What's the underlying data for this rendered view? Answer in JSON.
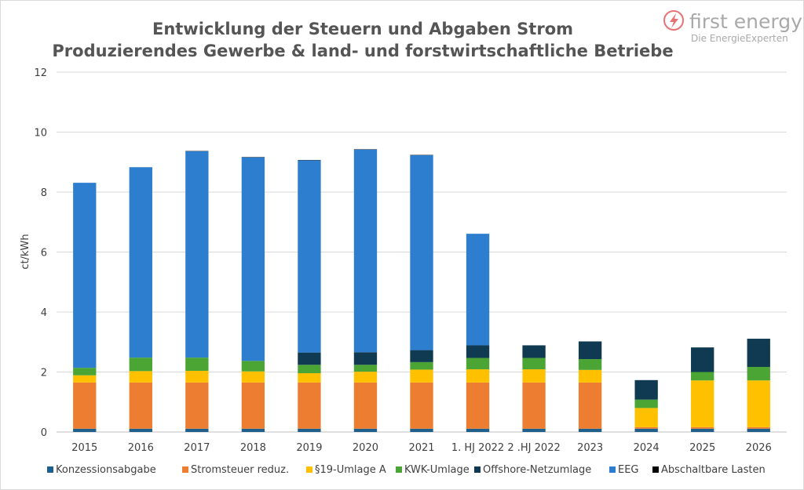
{
  "brand": {
    "name": "first energy",
    "tagline": "Die EnergieExperten",
    "icon": "lightning-bolt-icon",
    "color": "#e57373"
  },
  "chart_data": {
    "type": "bar",
    "stacked": true,
    "title_lines": [
      "Entwicklung der Steuern und Abgaben Strom",
      "Produzierendes Gewerbe & land- und forstwirtschaftliche Betriebe"
    ],
    "ylabel": "ct/kWh",
    "xlabel": "",
    "ylim": [
      0,
      12
    ],
    "yticks": [
      0,
      2,
      4,
      6,
      8,
      10,
      12
    ],
    "grid": true,
    "legend_position": "bottom",
    "categories": [
      "2015",
      "2016",
      "2017",
      "2018",
      "2019",
      "2020",
      "2021",
      "1. HJ 2022",
      "2 .HJ 2022",
      "2023",
      "2024",
      "2025",
      "2026"
    ],
    "series": [
      {
        "name": "Konzessionsabgabe",
        "color": "#1f5f8b",
        "values": [
          0.11,
          0.11,
          0.11,
          0.11,
          0.11,
          0.11,
          0.11,
          0.11,
          0.11,
          0.11,
          0.11,
          0.11,
          0.11
        ]
      },
      {
        "name": "Stromsteuer reduz.",
        "color": "#ed7d31",
        "values": [
          1.54,
          1.54,
          1.54,
          1.54,
          1.54,
          1.54,
          1.54,
          1.54,
          1.54,
          1.54,
          0.05,
          0.05,
          0.05
        ]
      },
      {
        "name": "§19-Umlage A",
        "color": "#ffc000",
        "values": [
          0.24,
          0.38,
          0.39,
          0.37,
          0.31,
          0.36,
          0.43,
          0.44,
          0.44,
          0.42,
          0.64,
          1.56,
          1.56
        ]
      },
      {
        "name": "KWK-Umlage",
        "color": "#4aa534",
        "values": [
          0.25,
          0.45,
          0.44,
          0.35,
          0.28,
          0.23,
          0.25,
          0.38,
          0.38,
          0.36,
          0.28,
          0.28,
          0.45
        ]
      },
      {
        "name": "Offshore-Netzumlage",
        "color": "#0f3a52",
        "values": [
          0.0,
          0.0,
          0.0,
          0.0,
          0.41,
          0.42,
          0.4,
          0.42,
          0.42,
          0.59,
          0.65,
          0.82,
          0.94
        ]
      },
      {
        "name": "EEG",
        "color": "#2e7ecf",
        "values": [
          6.17,
          6.35,
          6.88,
          6.79,
          6.41,
          6.76,
          6.5,
          3.72,
          0.0,
          0.0,
          0.0,
          0.0,
          0.0
        ]
      },
      {
        "name": "Abschaltbare Lasten",
        "color": "#000000",
        "values": [
          0.0,
          0.0,
          0.01,
          0.01,
          0.01,
          0.01,
          0.01,
          0.0,
          0.0,
          0.0,
          0.0,
          0.0,
          0.0
        ]
      }
    ]
  }
}
